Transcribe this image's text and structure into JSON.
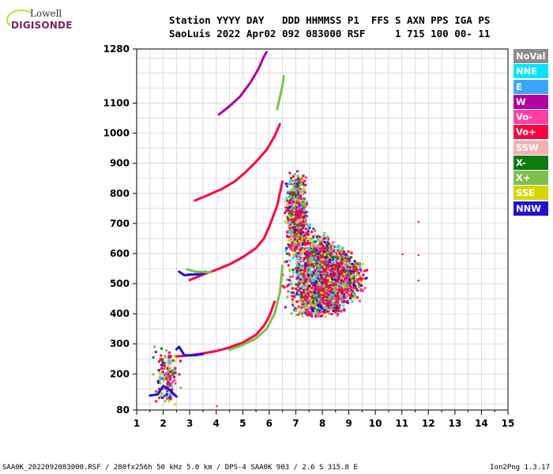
{
  "logo": {
    "line1": "Lowell",
    "line2": "DIGISONDE"
  },
  "header": {
    "line1": "Station YYYY DAY   DDD HHMMSS P1  FFS S AXN PPS IGA PS",
    "line2": "SaoLuis 2022 Apr02 092 083000 RSF     1 715 100 00- 11"
  },
  "footer": {
    "left": "SAA0K_2022092083000.RSF / 280fx256h 50 kHz 5.0 km / DPS-4 SAA0K 903 / 2.6 S 315.8 E",
    "right": "Ion2Png 1.3.17"
  },
  "legend": [
    {
      "label": "NoVal",
      "color": "#8c8c8c"
    },
    {
      "label": "NNE",
      "color": "#00e5ff"
    },
    {
      "label": "E",
      "color": "#3aa6ff"
    },
    {
      "label": "W",
      "color": "#b0009e"
    },
    {
      "label": "Vo-",
      "color": "#ff3fa4"
    },
    {
      "label": "Vo+",
      "color": "#ff0040"
    },
    {
      "label": "SSW",
      "color": "#f4b0b0"
    },
    {
      "label": "X-",
      "color": "#0b7c0b"
    },
    {
      "label": "X+",
      "color": "#7fbf50"
    },
    {
      "label": "SSE",
      "color": "#d6d600"
    },
    {
      "label": "NNW",
      "color": "#2010d0"
    }
  ],
  "chart_data": {
    "type": "scatter",
    "xlim": [
      1,
      15
    ],
    "ylim": [
      80,
      1280
    ],
    "x_ticks": [
      1,
      2,
      3,
      4,
      5,
      6,
      7,
      8,
      9,
      10,
      11,
      12,
      13,
      14,
      15
    ],
    "y_ticks": [
      80,
      200,
      300,
      400,
      500,
      600,
      700,
      800,
      900,
      1000,
      1100,
      1280
    ],
    "grid": true,
    "traces": [
      {
        "name": "Vo+",
        "color": "#ff0040",
        "points": [
          [
            2.5,
            258
          ],
          [
            3.0,
            262
          ],
          [
            3.5,
            268
          ],
          [
            4.0,
            276
          ],
          [
            4.5,
            288
          ],
          [
            5.0,
            304
          ],
          [
            5.5,
            330
          ],
          [
            5.8,
            360
          ],
          [
            6.0,
            392
          ],
          [
            6.2,
            440
          ]
        ]
      },
      {
        "name": "X+",
        "color": "#7fbf50",
        "points": [
          [
            4.5,
            280
          ],
          [
            5.0,
            296
          ],
          [
            5.5,
            318
          ],
          [
            5.9,
            350
          ],
          [
            6.2,
            400
          ],
          [
            6.4,
            470
          ],
          [
            6.5,
            560
          ]
        ]
      },
      {
        "name": "NNW",
        "color": "#2010d0",
        "points": [
          [
            2.5,
            282
          ],
          [
            2.6,
            290
          ],
          [
            2.8,
            262
          ],
          [
            3.2,
            262
          ],
          [
            3.5,
            266
          ]
        ]
      },
      {
        "name": "Vo+",
        "color": "#ff0040",
        "points": [
          [
            3.0,
            512
          ],
          [
            3.5,
            530
          ],
          [
            4.0,
            546
          ],
          [
            4.5,
            564
          ],
          [
            5.0,
            588
          ],
          [
            5.5,
            618
          ],
          [
            5.8,
            650
          ],
          [
            6.0,
            690
          ],
          [
            6.3,
            760
          ],
          [
            6.5,
            840
          ]
        ]
      },
      {
        "name": "Vo+",
        "color": "#ff0040",
        "points": [
          [
            3.2,
            776
          ],
          [
            3.7,
            795
          ],
          [
            4.2,
            814
          ],
          [
            4.7,
            840
          ],
          [
            5.1,
            870
          ],
          [
            5.5,
            905
          ],
          [
            5.9,
            945
          ],
          [
            6.2,
            990
          ],
          [
            6.4,
            1030
          ]
        ]
      },
      {
        "name": "W",
        "color": "#b0009e",
        "points": [
          [
            4.1,
            1062
          ],
          [
            4.5,
            1090
          ],
          [
            4.9,
            1122
          ],
          [
            5.3,
            1170
          ],
          [
            5.6,
            1215
          ],
          [
            5.8,
            1255
          ],
          [
            5.9,
            1270
          ]
        ]
      },
      {
        "name": "X+",
        "color": "#7fbf50",
        "points": [
          [
            6.3,
            1080
          ],
          [
            6.4,
            1120
          ],
          [
            6.5,
            1160
          ],
          [
            6.55,
            1190
          ]
        ]
      },
      {
        "name": "NNW",
        "color": "#2010d0",
        "points": [
          [
            2.6,
            540
          ],
          [
            2.8,
            528
          ],
          [
            3.0,
            530
          ],
          [
            3.5,
            532
          ],
          [
            3.6,
            540
          ]
        ]
      },
      {
        "name": "X+",
        "color": "#7fbf50",
        "points": [
          [
            2.9,
            548
          ],
          [
            3.2,
            540
          ],
          [
            3.8,
            538
          ]
        ]
      },
      {
        "name": "NNW",
        "color": "#2010d0",
        "points": [
          [
            1.5,
            128
          ],
          [
            1.8,
            132
          ],
          [
            2.0,
            160
          ],
          [
            2.2,
            150
          ],
          [
            2.5,
            125
          ]
        ]
      }
    ],
    "clusters": [
      {
        "x": [
          6.3,
          9.8
        ],
        "y": [
          400,
          760
        ],
        "center": [
          7.2,
          520
        ],
        "n": 2600
      },
      {
        "x": [
          6.5,
          7.5
        ],
        "y": [
          600,
          880
        ],
        "center": [
          6.8,
          700
        ],
        "n": 700
      },
      {
        "x": [
          1.5,
          2.7
        ],
        "y": [
          100,
          300
        ],
        "center": [
          2.1,
          135
        ],
        "n": 160
      }
    ],
    "isolated_points": [
      [
        11.6,
        708
      ],
      [
        11.6,
        597
      ],
      [
        11.6,
        513
      ],
      [
        11.0,
        600
      ],
      [
        4.0,
        95
      ]
    ]
  }
}
